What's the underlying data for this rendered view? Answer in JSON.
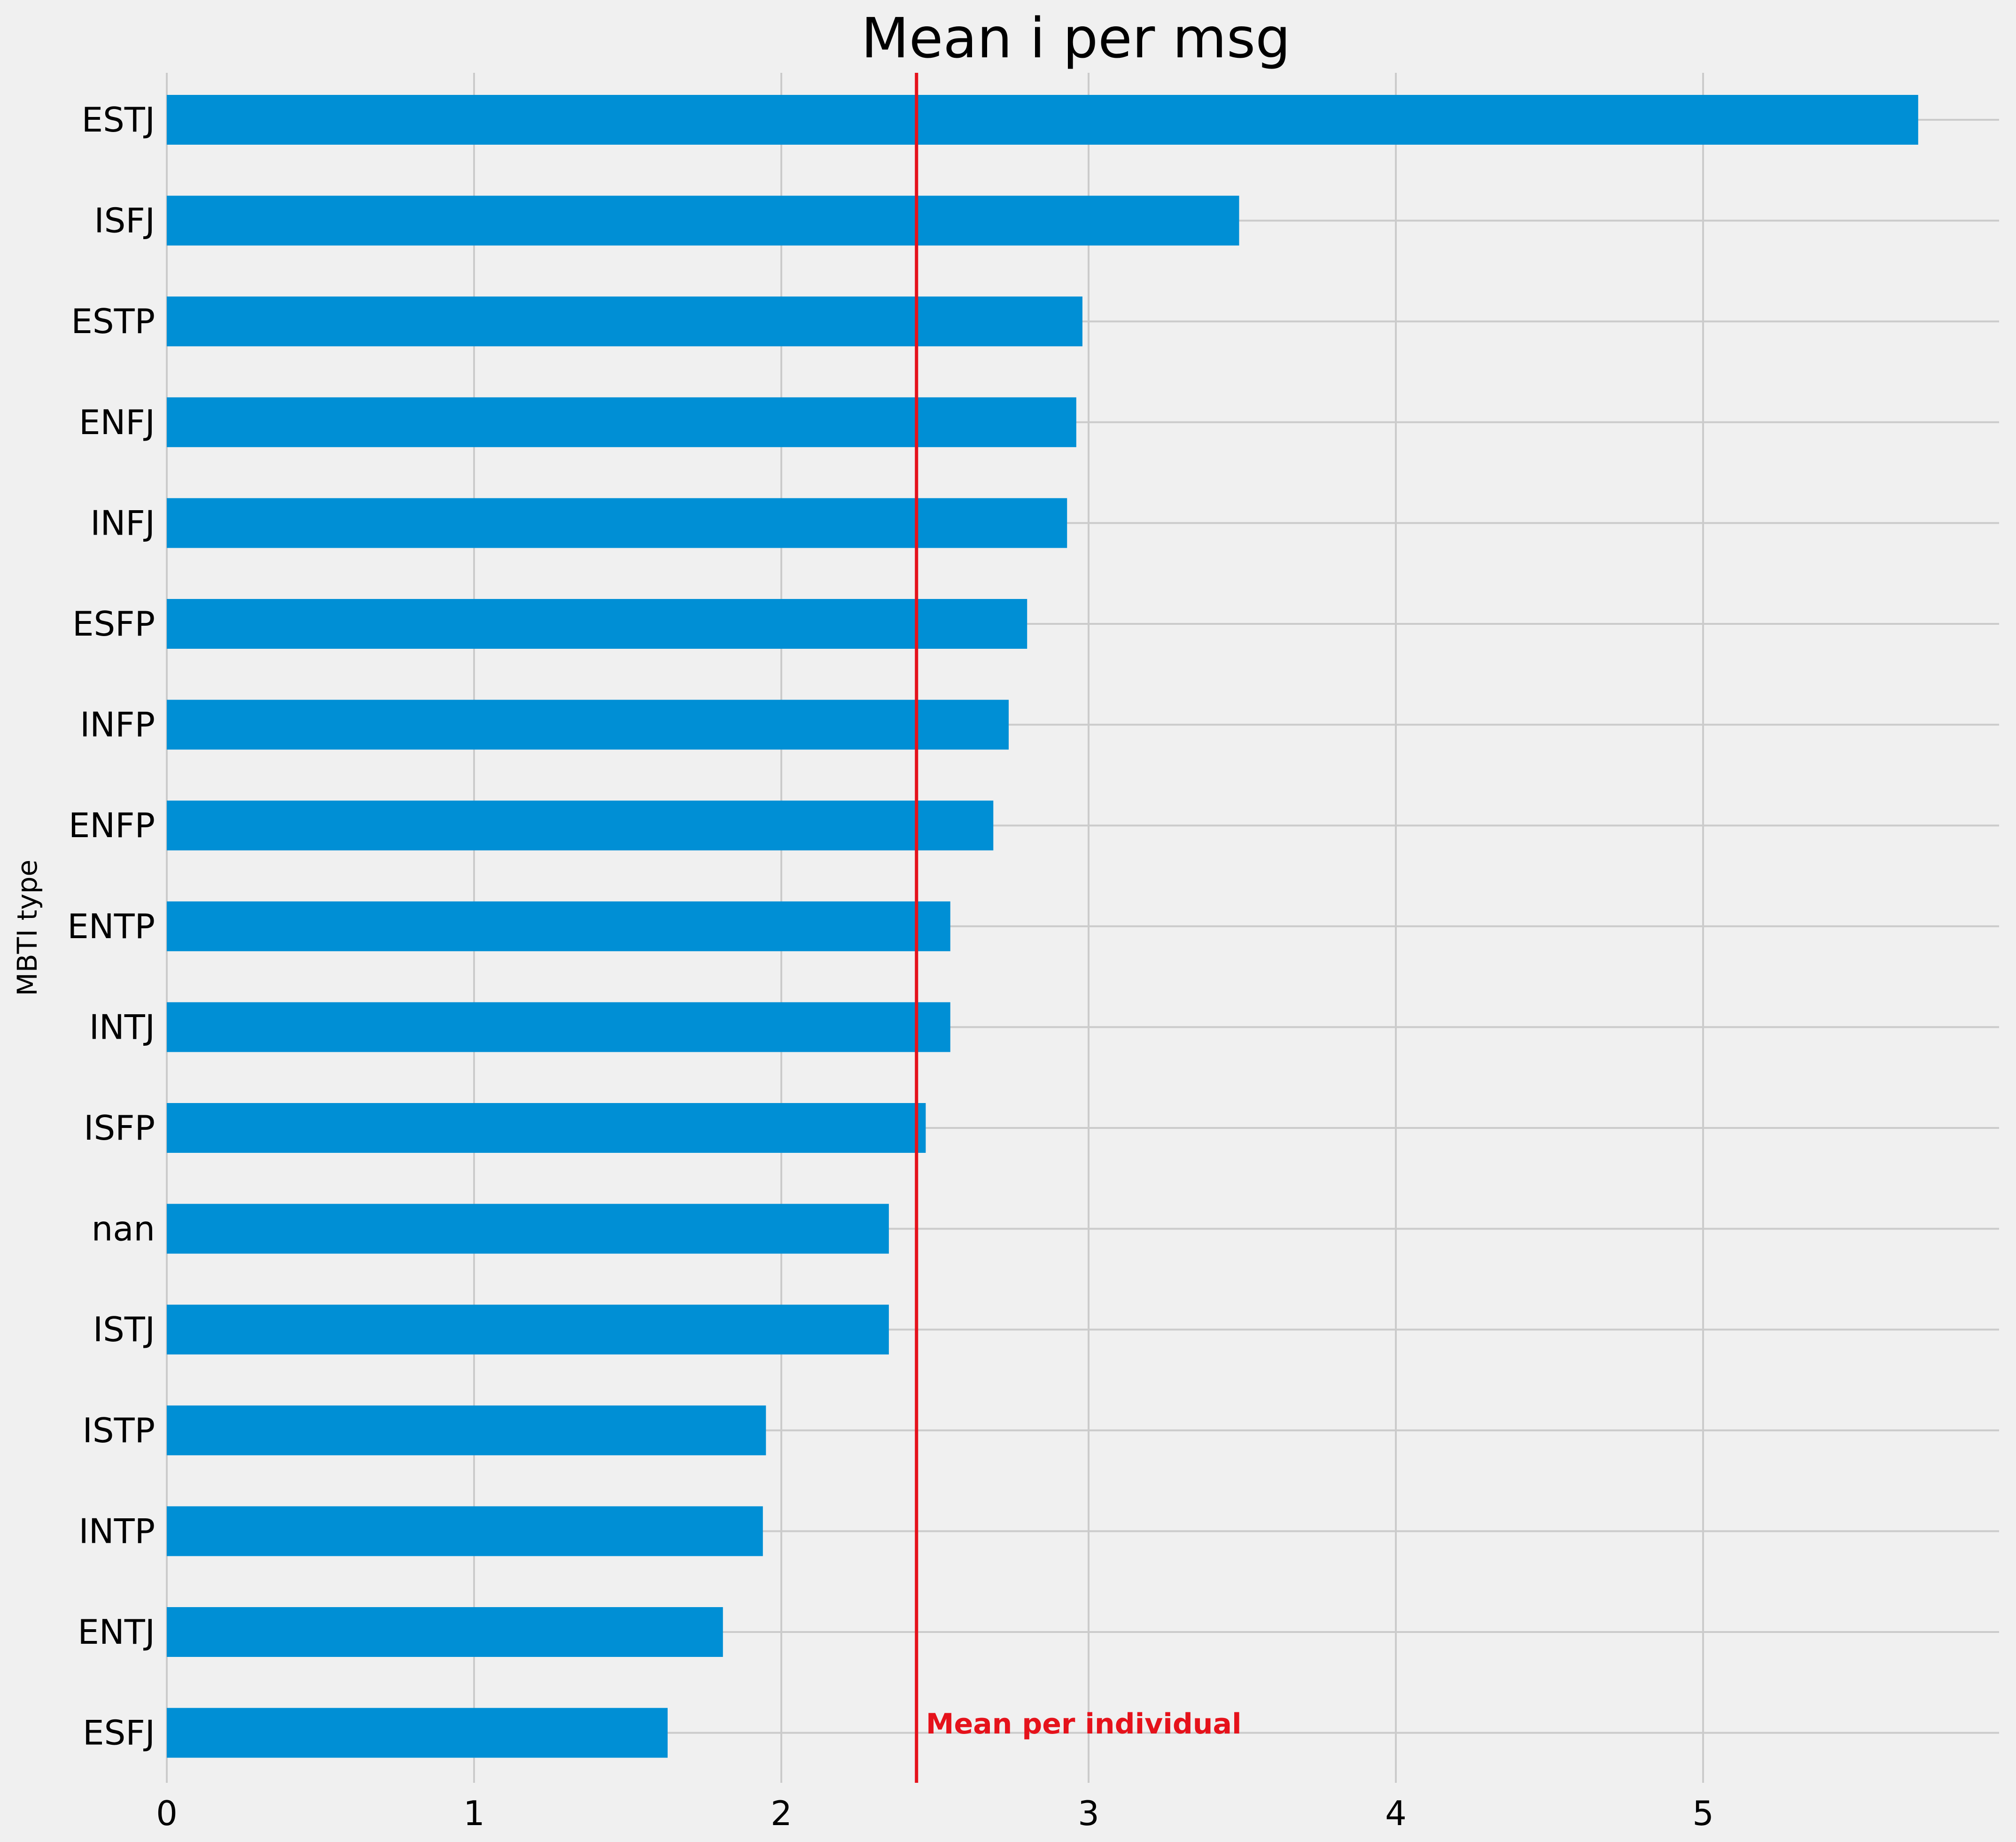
{
  "chart_data": {
    "type": "bar",
    "orientation": "horizontal",
    "title": "Mean i per msg",
    "ylabel": "MBTI type",
    "xlabel": "",
    "categories": [
      "ESTJ",
      "ISFJ",
      "ESTP",
      "ENFJ",
      "INFJ",
      "ESFP",
      "INFP",
      "ENFP",
      "ENTP",
      "INTJ",
      "ISFP",
      "nan",
      "ISTJ",
      "ISTP",
      "INTP",
      "ENTJ",
      "ESFJ"
    ],
    "values": [
      5.7,
      3.49,
      2.98,
      2.96,
      2.93,
      2.8,
      2.74,
      2.69,
      2.55,
      2.55,
      2.47,
      2.35,
      2.35,
      1.95,
      1.94,
      1.81,
      1.63
    ],
    "xlim": [
      0,
      6.0
    ],
    "xticks": [
      0,
      1,
      2,
      3,
      4,
      5
    ],
    "grid": true,
    "bar_color": "#008fd5",
    "reference_line": {
      "value": 2.44,
      "label": "Mean per individual",
      "color": "#e5121b"
    }
  }
}
